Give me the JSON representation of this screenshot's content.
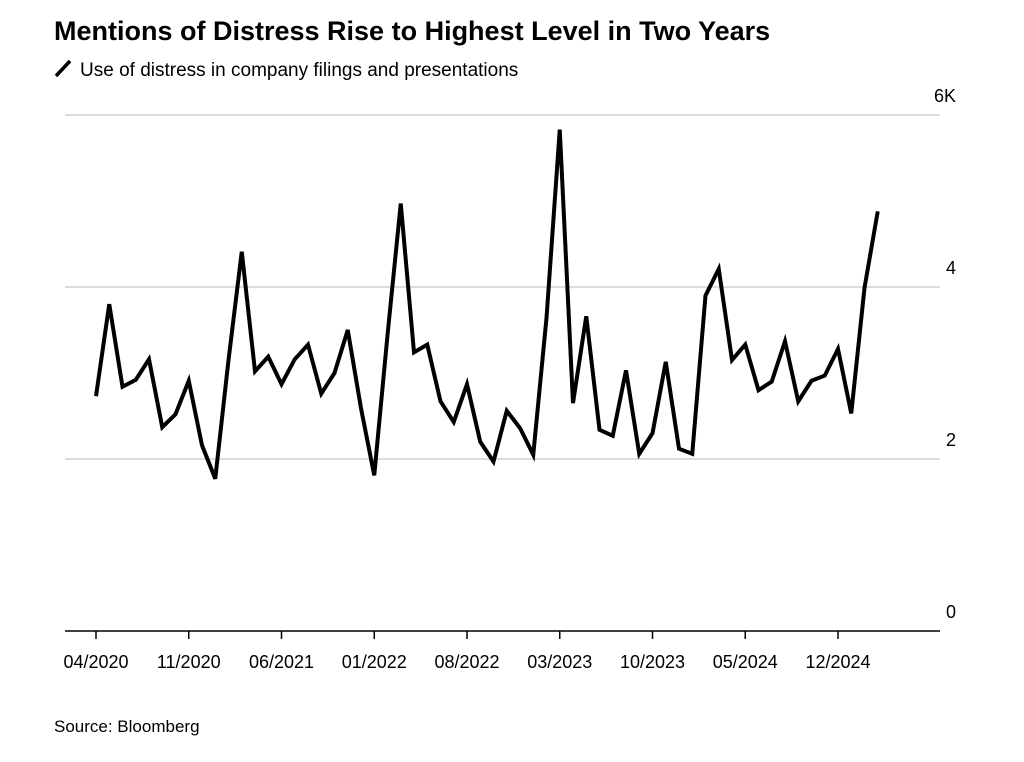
{
  "chart_data": {
    "type": "line",
    "title": "Mentions of Distress Rise to Highest Level in Two Years",
    "source": "Source: Bloomberg",
    "categories": [
      "04/2020",
      null,
      null,
      null,
      null,
      null,
      null,
      "11/2020",
      null,
      null,
      null,
      null,
      null,
      null,
      "06/2021",
      null,
      null,
      null,
      null,
      null,
      null,
      "01/2022",
      null,
      null,
      null,
      null,
      null,
      null,
      "08/2022",
      null,
      null,
      null,
      null,
      null,
      null,
      "03/2023",
      null,
      null,
      null,
      null,
      null,
      null,
      "10/2023",
      null,
      null,
      null,
      null,
      null,
      null,
      "05/2024",
      null,
      null,
      null,
      null,
      null,
      null,
      "12/2024",
      null,
      null,
      null
    ],
    "series": [
      {
        "name": "Use of distress in company filings and presentations",
        "color": "#000000",
        "values": [
          2.73,
          3.8,
          2.84,
          2.92,
          3.16,
          2.37,
          2.52,
          2.91,
          2.16,
          1.77,
          3.15,
          4.41,
          3.02,
          3.19,
          2.87,
          3.16,
          3.33,
          2.76,
          3.0,
          3.5,
          2.59,
          1.81,
          3.44,
          4.97,
          3.24,
          3.33,
          2.67,
          2.43,
          2.87,
          2.2,
          1.97,
          2.56,
          2.36,
          2.05,
          3.64,
          5.83,
          2.65,
          3.66,
          2.34,
          2.27,
          3.03,
          2.06,
          2.3,
          3.13,
          2.12,
          2.06,
          3.9,
          4.21,
          3.15,
          3.33,
          2.8,
          2.9,
          3.37,
          2.67,
          2.91,
          2.97,
          3.28,
          2.53,
          3.99,
          4.88
        ]
      }
    ],
    "ylim": [
      0,
      6
    ],
    "yticks": [
      0,
      2,
      4,
      {
        "value": 6,
        "label": "6K"
      }
    ],
    "grid": true
  }
}
